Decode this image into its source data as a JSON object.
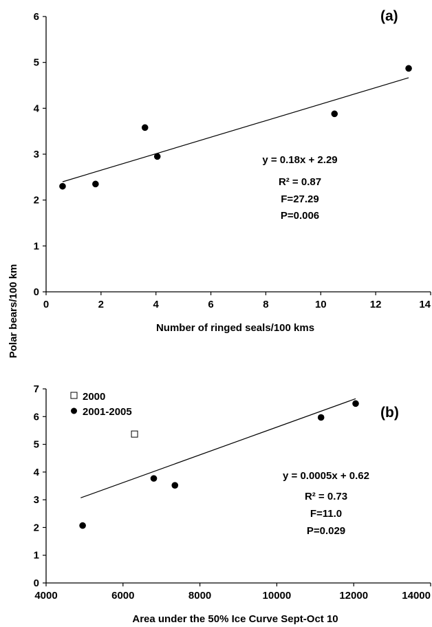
{
  "shared_ylabel": "Polar bears/100 km",
  "chart_data": [
    {
      "type": "scatter",
      "panel_label": "(a)",
      "xlabel": "Number of ringed seals/100 kms",
      "ylabel": "Polar bears/100 km",
      "xlim": [
        0,
        14
      ],
      "ylim": [
        0,
        6
      ],
      "xticks": [
        "0",
        "2",
        "4",
        "6",
        "8",
        "10",
        "12",
        "14"
      ],
      "yticks": [
        "0",
        "1",
        "2",
        "3",
        "4",
        "5",
        "6"
      ],
      "grid": false,
      "series": [
        {
          "marker": "filled-circle",
          "points": [
            [
              0.6,
              2.3
            ],
            [
              1.8,
              2.35
            ],
            [
              3.6,
              3.58
            ],
            [
              4.05,
              2.95
            ],
            [
              10.5,
              3.88
            ],
            [
              13.2,
              4.87
            ]
          ]
        }
      ],
      "trendline": {
        "slope": 0.18,
        "intercept": 2.29,
        "x_range": [
          0.6,
          13.2
        ]
      },
      "annotations": [
        "y = 0.18x + 2.29",
        "R² = 0.87",
        "F=27.29",
        "P=0.006"
      ]
    },
    {
      "type": "scatter",
      "panel_label": "(b)",
      "xlabel": "Area under the 50% Ice Curve Sept-Oct 10",
      "ylabel": "Polar bears/100 km",
      "xlim": [
        4000,
        14000
      ],
      "ylim": [
        0,
        7
      ],
      "xticks": [
        "4000",
        "6000",
        "8000",
        "10000",
        "12000",
        "14000"
      ],
      "yticks": [
        "0",
        "1",
        "2",
        "3",
        "4",
        "5",
        "6",
        "7"
      ],
      "grid": false,
      "legend_position": "top-left",
      "series": [
        {
          "name": "2000",
          "marker": "open-square",
          "points": [
            [
              6300,
              5.37
            ]
          ]
        },
        {
          "name": "2001-2005",
          "marker": "filled-circle",
          "points": [
            [
              4950,
              2.07
            ],
            [
              6800,
              3.77
            ],
            [
              7350,
              3.52
            ],
            [
              11150,
              5.97
            ],
            [
              12050,
              6.47
            ]
          ]
        }
      ],
      "trendline": {
        "slope": 0.0005,
        "intercept": 0.62,
        "x_range": [
          4900,
          12050
        ]
      },
      "annotations": [
        "y = 0.0005x + 0.62",
        "R² = 0.73",
        "F=11.0",
        "P=0.029"
      ]
    }
  ]
}
